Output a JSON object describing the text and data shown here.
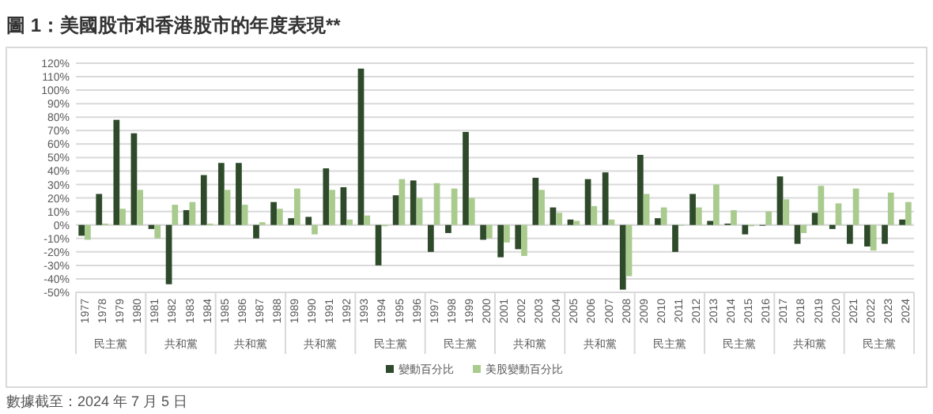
{
  "chart_data": {
    "type": "bar",
    "title": "圖 1：美國股市和香港股市的年度表現**",
    "categories": [
      "1977",
      "1978",
      "1979",
      "1980",
      "1981",
      "1982",
      "1983",
      "1984",
      "1985",
      "1986",
      "1987",
      "1988",
      "1989",
      "1990",
      "1991",
      "1992",
      "1993",
      "1994",
      "1995",
      "1996",
      "1997",
      "1998",
      "1999",
      "2000",
      "2001",
      "2002",
      "2003",
      "2004",
      "2005",
      "2006",
      "2007",
      "2008",
      "2009",
      "2010",
      "2011",
      "2012",
      "2013",
      "2014",
      "2015",
      "2016",
      "2017",
      "2018",
      "2019",
      "2020",
      "2021",
      "2022",
      "2023",
      "2024"
    ],
    "series": [
      {
        "name": "變動百分比",
        "color": "#2e4a2b",
        "values": [
          -8,
          23,
          78,
          68,
          -3,
          -44,
          11,
          37,
          46,
          46,
          -10,
          17,
          5,
          6,
          42,
          28,
          116,
          -30,
          22,
          33,
          -20,
          -6,
          69,
          -11,
          -24,
          -18,
          35,
          13,
          4,
          34,
          39,
          -48,
          52,
          5,
          -20,
          23,
          3,
          1,
          -7,
          0,
          36,
          -14,
          9,
          -3,
          -14,
          -16,
          -14,
          4
        ]
      },
      {
        "name": "美股變動百分比",
        "color": "#a9cb8e",
        "values": [
          -11,
          1,
          12,
          26,
          -10,
          15,
          17,
          1,
          26,
          15,
          2,
          12,
          27,
          -7,
          26,
          4,
          7,
          -1,
          34,
          20,
          31,
          27,
          20,
          -10,
          -13,
          -23,
          26,
          9,
          3,
          14,
          4,
          -38,
          23,
          13,
          0,
          13,
          30,
          11,
          -1,
          10,
          19,
          -6,
          29,
          16,
          27,
          -19,
          24,
          17
        ]
      }
    ],
    "ylim": [
      -50,
      120
    ],
    "yticks": [
      {
        "value": -50,
        "label": "-50%"
      },
      {
        "value": -40,
        "label": "-40%"
      },
      {
        "value": -30,
        "label": "-30%"
      },
      {
        "value": -20,
        "label": "-20%"
      },
      {
        "value": -10,
        "label": "-10%"
      },
      {
        "value": 0,
        "label": "0%"
      },
      {
        "value": 10,
        "label": "10%"
      },
      {
        "value": 20,
        "label": "20%"
      },
      {
        "value": 30,
        "label": "30%"
      },
      {
        "value": 40,
        "label": "40%"
      },
      {
        "value": 50,
        "label": "50%"
      },
      {
        "value": 60,
        "label": "60%"
      },
      {
        "value": 70,
        "label": "70%"
      },
      {
        "value": 80,
        "label": "80%"
      },
      {
        "value": 90,
        "label": "90%"
      },
      {
        "value": 100,
        "label": "100%"
      },
      {
        "value": 110,
        "label": "110%"
      },
      {
        "value": 120,
        "label": "120%"
      }
    ],
    "grid": "y",
    "legend": "bottom",
    "annotations": [
      "民主黨",
      "共和黨",
      "共和黨",
      "共和黨",
      "民主黨",
      "民主黨",
      "共和黨",
      "共和黨",
      "民主黨",
      "民主黨",
      "共和黨",
      "民主黨",
      "數據截至：2024 年 7 月 5 日"
    ]
  }
}
